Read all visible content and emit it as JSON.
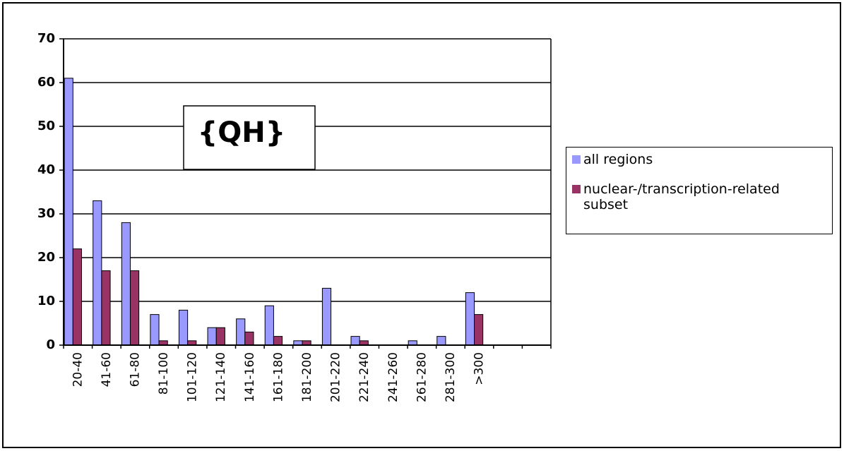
{
  "chart_data": {
    "type": "bar",
    "annotation": "{QH}",
    "categories": [
      "20-40",
      "41-60",
      "61-80",
      "81-100",
      "101-120",
      "121-140",
      "141-160",
      "161-180",
      "181-200",
      "201-220",
      "221-240",
      "241-260",
      "261-280",
      "281-300",
      ">300",
      null,
      null
    ],
    "series": [
      {
        "name": "all regions",
        "color": "#9999ff",
        "values": [
          61,
          33,
          28,
          7,
          8,
          4,
          6,
          9,
          1,
          13,
          2,
          0,
          1,
          2,
          12,
          null,
          null
        ]
      },
      {
        "name": "nuclear-/transcription-related subset",
        "color": "#993366",
        "values": [
          22,
          17,
          17,
          1,
          1,
          4,
          3,
          2,
          1,
          0,
          1,
          0,
          0,
          0,
          7,
          null,
          null
        ]
      }
    ],
    "ylim": [
      0,
      70
    ],
    "yticks": [
      0,
      10,
      20,
      30,
      40,
      50,
      60,
      70
    ],
    "grid": true,
    "legend": "right"
  }
}
